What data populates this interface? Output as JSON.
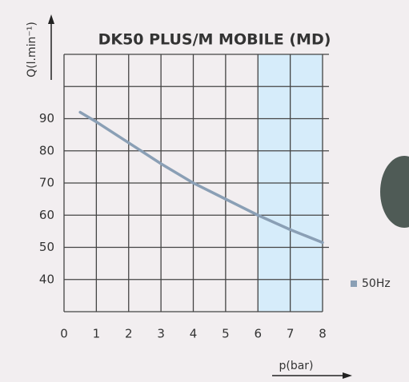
{
  "chart_data": {
    "type": "line",
    "title": "DK50 PLUS/M MOBILE (MD)",
    "x_label": "p(bar)",
    "y_label": "Q(l.min⁻¹)",
    "x": [
      0.5,
      1,
      2,
      3,
      4,
      5,
      6,
      7,
      8
    ],
    "series": [
      {
        "name": "50Hz",
        "color": "#8a9fb5",
        "values": [
          92,
          89,
          82.5,
          76,
          70,
          65,
          60,
          55.5,
          51.5
        ]
      }
    ],
    "xlim": [
      0,
      8
    ],
    "xticks": [
      0,
      1,
      2,
      3,
      4,
      5,
      6,
      7,
      8
    ],
    "ylim": [
      30,
      110
    ],
    "yticks": [
      40,
      50,
      60,
      70,
      80,
      90
    ],
    "shaded_xrange": [
      6,
      8
    ],
    "shade_color": "#d6ecfa",
    "grid": true,
    "legend": "right"
  }
}
